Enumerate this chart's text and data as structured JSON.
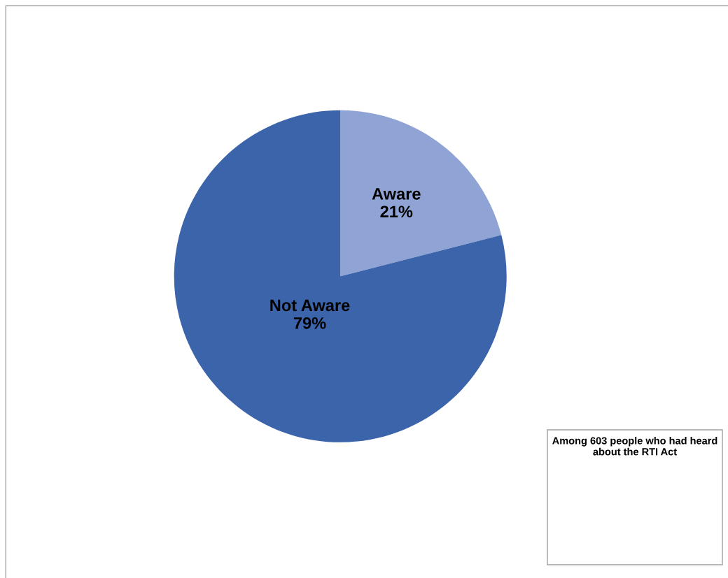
{
  "chart_data": {
    "type": "pie",
    "categories": [
      "Aware",
      "Not Aware"
    ],
    "values": [
      21,
      79
    ],
    "colors": [
      "#8fa3d4",
      "#3c64ab"
    ],
    "value_labels": [
      "21%",
      "79%"
    ],
    "annotations": [
      "Among 603 people who had heard about the RTI Act"
    ],
    "legend": false
  }
}
